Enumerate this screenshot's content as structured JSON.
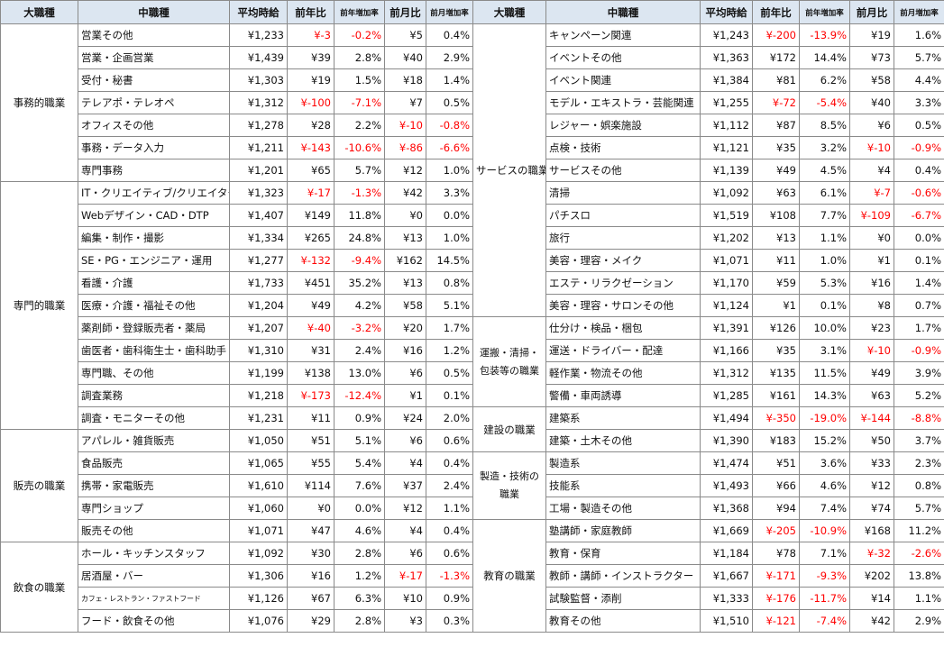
{
  "headers": [
    "大職種",
    "中職種",
    "平均時給",
    "前年比",
    "前年増加率",
    "前月比",
    "前月増加率"
  ],
  "left": [
    {
      "name": "事務的職業",
      "rows": [
        [
          "営業その他",
          "¥1,233",
          "¥-3",
          "-0.2%",
          "¥5",
          "0.4%"
        ],
        [
          "営業・企画営業",
          "¥1,439",
          "¥39",
          "2.8%",
          "¥40",
          "2.9%"
        ],
        [
          "受付・秘書",
          "¥1,303",
          "¥19",
          "1.5%",
          "¥18",
          "1.4%"
        ],
        [
          "テレアポ・テレオペ",
          "¥1,312",
          "¥-100",
          "-7.1%",
          "¥7",
          "0.5%"
        ],
        [
          "オフィスその他",
          "¥1,278",
          "¥28",
          "2.2%",
          "¥-10",
          "-0.8%"
        ],
        [
          "事務・データ入力",
          "¥1,211",
          "¥-143",
          "-10.6%",
          "¥-86",
          "-6.6%"
        ],
        [
          "専門事務",
          "¥1,201",
          "¥65",
          "5.7%",
          "¥12",
          "1.0%"
        ]
      ]
    },
    {
      "name": "専門的職業",
      "rows": [
        [
          "IT・クリエイティブ/クリエイターその他",
          "¥1,323",
          "¥-17",
          "-1.3%",
          "¥42",
          "3.3%"
        ],
        [
          "Webデザイン・CAD・DTP",
          "¥1,407",
          "¥149",
          "11.8%",
          "¥0",
          "0.0%"
        ],
        [
          "編集・制作・撮影",
          "¥1,334",
          "¥265",
          "24.8%",
          "¥13",
          "1.0%"
        ],
        [
          "SE・PG・エンジニア・運用",
          "¥1,277",
          "¥-132",
          "-9.4%",
          "¥162",
          "14.5%"
        ],
        [
          "看護・介護",
          "¥1,733",
          "¥451",
          "35.2%",
          "¥13",
          "0.8%"
        ],
        [
          "医療・介護・福祉その他",
          "¥1,204",
          "¥49",
          "4.2%",
          "¥58",
          "5.1%"
        ],
        [
          "薬剤師・登録販売者・薬局",
          "¥1,207",
          "¥-40",
          "-3.2%",
          "¥20",
          "1.7%"
        ],
        [
          "歯医者・歯科衛生士・歯科助手",
          "¥1,310",
          "¥31",
          "2.4%",
          "¥16",
          "1.2%"
        ],
        [
          "専門職、その他",
          "¥1,199",
          "¥138",
          "13.0%",
          "¥6",
          "0.5%"
        ],
        [
          "調査業務",
          "¥1,218",
          "¥-173",
          "-12.4%",
          "¥1",
          "0.1%"
        ],
        [
          "調査・モニターその他",
          "¥1,231",
          "¥11",
          "0.9%",
          "¥24",
          "2.0%"
        ]
      ]
    },
    {
      "name": "販売の職業",
      "rows": [
        [
          "アパレル・雑貨販売",
          "¥1,050",
          "¥51",
          "5.1%",
          "¥6",
          "0.6%"
        ],
        [
          "食品販売",
          "¥1,065",
          "¥55",
          "5.4%",
          "¥4",
          "0.4%"
        ],
        [
          "携帯・家電販売",
          "¥1,610",
          "¥114",
          "7.6%",
          "¥37",
          "2.4%"
        ],
        [
          "専門ショップ",
          "¥1,060",
          "¥0",
          "0.0%",
          "¥12",
          "1.1%"
        ],
        [
          "販売その他",
          "¥1,071",
          "¥47",
          "4.6%",
          "¥4",
          "0.4%"
        ]
      ]
    },
    {
      "name": "飲食の職業",
      "rows": [
        [
          "ホール・キッチンスタッフ",
          "¥1,092",
          "¥30",
          "2.8%",
          "¥6",
          "0.6%"
        ],
        [
          "居酒屋・バー",
          "¥1,306",
          "¥16",
          "1.2%",
          "¥-17",
          "-1.3%"
        ],
        [
          "カフェ・レストラン・ファストフード",
          "¥1,126",
          "¥67",
          "6.3%",
          "¥10",
          "0.9%"
        ],
        [
          "フード・飲食その他",
          "¥1,076",
          "¥29",
          "2.8%",
          "¥3",
          "0.3%"
        ]
      ]
    }
  ],
  "right": [
    {
      "name": "サービスの職業",
      "rows": [
        [
          "キャンペーン関連",
          "¥1,243",
          "¥-200",
          "-13.9%",
          "¥19",
          "1.6%"
        ],
        [
          "イベントその他",
          "¥1,363",
          "¥172",
          "14.4%",
          "¥73",
          "5.7%"
        ],
        [
          "イベント関連",
          "¥1,384",
          "¥81",
          "6.2%",
          "¥58",
          "4.4%"
        ],
        [
          "モデル・エキストラ・芸能関連",
          "¥1,255",
          "¥-72",
          "-5.4%",
          "¥40",
          "3.3%"
        ],
        [
          "レジャー・娯楽施設",
          "¥1,112",
          "¥87",
          "8.5%",
          "¥6",
          "0.5%"
        ],
        [
          "点検・技術",
          "¥1,121",
          "¥35",
          "3.2%",
          "¥-10",
          "-0.9%"
        ],
        [
          "サービスその他",
          "¥1,139",
          "¥49",
          "4.5%",
          "¥4",
          "0.4%"
        ],
        [
          "清掃",
          "¥1,092",
          "¥63",
          "6.1%",
          "¥-7",
          "-0.6%"
        ],
        [
          "パチスロ",
          "¥1,519",
          "¥108",
          "7.7%",
          "¥-109",
          "-6.7%"
        ],
        [
          "旅行",
          "¥1,202",
          "¥13",
          "1.1%",
          "¥0",
          "0.0%"
        ],
        [
          "美容・理容・メイク",
          "¥1,071",
          "¥11",
          "1.0%",
          "¥1",
          "0.1%"
        ],
        [
          "エステ・リラクゼーション",
          "¥1,170",
          "¥59",
          "5.3%",
          "¥16",
          "1.4%"
        ],
        [
          "美容・理容・サロンその他",
          "¥1,124",
          "¥1",
          "0.1%",
          "¥8",
          "0.7%"
        ]
      ]
    },
    {
      "name": "運搬・清掃・包装等の職業",
      "rows": [
        [
          "仕分け・検品・梱包",
          "¥1,391",
          "¥126",
          "10.0%",
          "¥23",
          "1.7%"
        ],
        [
          "運送・ドライバー・配達",
          "¥1,166",
          "¥35",
          "3.1%",
          "¥-10",
          "-0.9%"
        ],
        [
          "軽作業・物流その他",
          "¥1,312",
          "¥135",
          "11.5%",
          "¥49",
          "3.9%"
        ],
        [
          "警備・車両誘導",
          "¥1,285",
          "¥161",
          "14.3%",
          "¥63",
          "5.2%"
        ]
      ]
    },
    {
      "name": "建設の職業",
      "rows": [
        [
          "建築系",
          "¥1,494",
          "¥-350",
          "-19.0%",
          "¥-144",
          "-8.8%"
        ],
        [
          "建築・土木その他",
          "¥1,390",
          "¥183",
          "15.2%",
          "¥50",
          "3.7%"
        ]
      ]
    },
    {
      "name": "製造・技術の職業",
      "rows": [
        [
          "製造系",
          "¥1,474",
          "¥51",
          "3.6%",
          "¥33",
          "2.3%"
        ],
        [
          "技能系",
          "¥1,493",
          "¥66",
          "4.6%",
          "¥12",
          "0.8%"
        ],
        [
          "工場・製造その他",
          "¥1,368",
          "¥94",
          "7.4%",
          "¥74",
          "5.7%"
        ]
      ]
    },
    {
      "name": "教育の職業",
      "rows": [
        [
          "塾講師・家庭教師",
          "¥1,669",
          "¥-205",
          "-10.9%",
          "¥168",
          "11.2%"
        ],
        [
          "教育・保育",
          "¥1,184",
          "¥78",
          "7.1%",
          "¥-32",
          "-2.6%"
        ],
        [
          "教師・講師・インストラクター",
          "¥1,667",
          "¥-171",
          "-9.3%",
          "¥202",
          "13.8%"
        ],
        [
          "試験監督・添削",
          "¥1,333",
          "¥-176",
          "-11.7%",
          "¥14",
          "1.1%"
        ],
        [
          "教育その他",
          "¥1,510",
          "¥-121",
          "-7.4%",
          "¥42",
          "2.9%"
        ]
      ]
    }
  ],
  "colors": {
    "header_bg": "#dce6f1",
    "negative": "#ff0000",
    "border": "#8a8a8a"
  }
}
